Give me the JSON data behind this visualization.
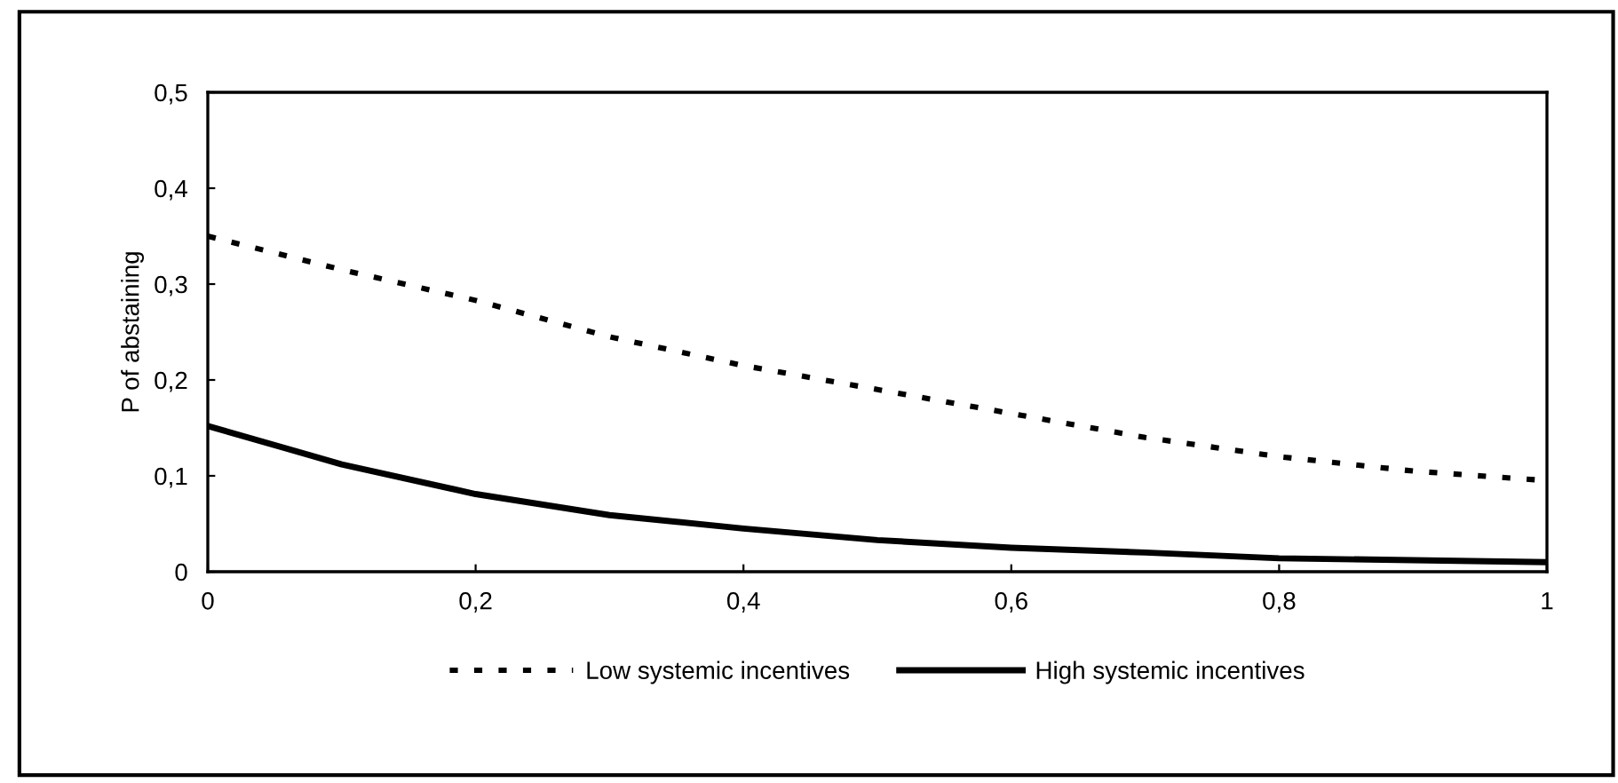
{
  "chart_data": {
    "type": "line",
    "ylabel": "P of abstaining",
    "x": [
      0,
      0.1,
      0.2,
      0.3,
      0.4,
      0.5,
      0.6,
      0.7,
      0.8,
      0.9,
      1
    ],
    "series": [
      {
        "name": "Low systemic incentives",
        "color": "#000000",
        "line_style": "dotted",
        "values": [
          0.35,
          0.315,
          0.283,
          0.245,
          0.215,
          0.19,
          0.165,
          0.14,
          0.12,
          0.105,
          0.095
        ]
      },
      {
        "name": "High systemic incentives",
        "color": "#000000",
        "line_style": "solid",
        "values": [
          0.152,
          0.112,
          0.081,
          0.059,
          0.045,
          0.033,
          0.025,
          0.02,
          0.014,
          0.012,
          0.01
        ]
      }
    ],
    "xlim": [
      0,
      1
    ],
    "ylim": [
      0,
      0.5
    ],
    "xticks": [
      0,
      {
        "value": 0.2,
        "label": "0,2"
      },
      {
        "value": 0.4,
        "label": "0,4"
      },
      {
        "value": 0.6,
        "label": "0,6"
      },
      {
        "value": 0.8,
        "label": "0,8"
      },
      1
    ],
    "yticks": [
      0,
      {
        "value": 0.1,
        "label": "0,1"
      },
      {
        "value": 0.2,
        "label": "0,2"
      },
      {
        "value": 0.3,
        "label": "0,3"
      },
      {
        "value": 0.4,
        "label": "0,4"
      },
      {
        "value": 0.5,
        "label": "0,5"
      }
    ],
    "grid": false,
    "legend": "bottom",
    "marker": "none"
  }
}
